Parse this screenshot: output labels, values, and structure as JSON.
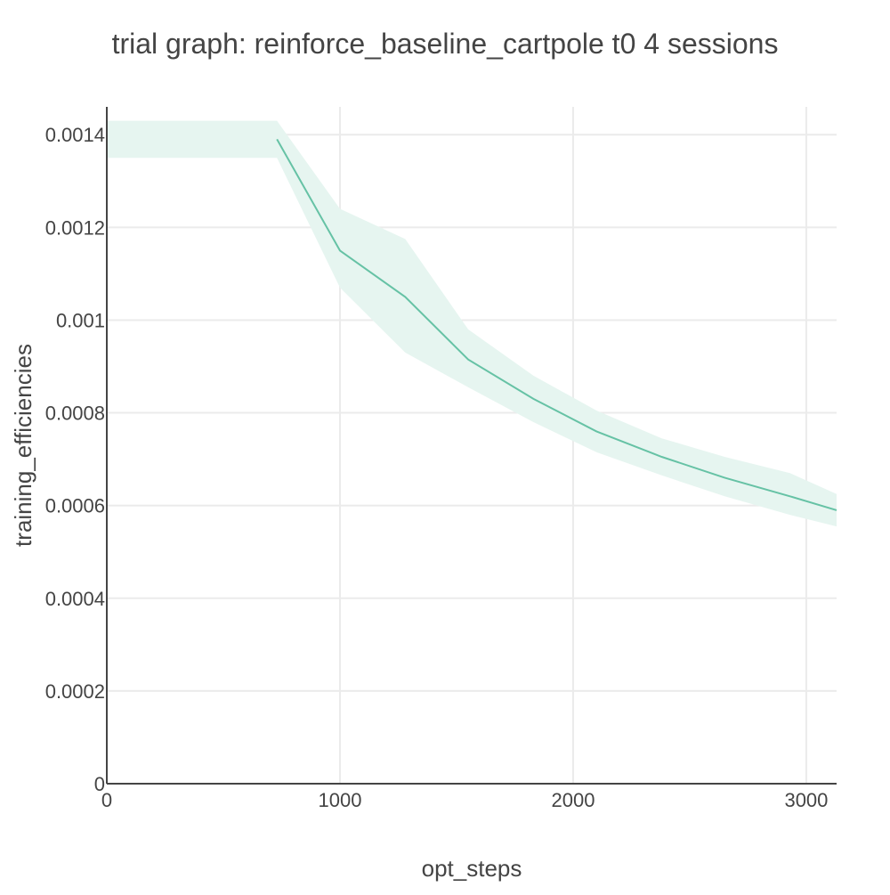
{
  "chart_data": {
    "type": "line",
    "title": "trial graph: reinforce_baseline_cartpole t0 4 sessions",
    "xlabel": "opt_steps",
    "ylabel": "training_efficiencies",
    "xlim": [
      0,
      3130
    ],
    "ylim": [
      0,
      0.00146
    ],
    "x_ticks": [
      0,
      1000,
      2000,
      3000
    ],
    "x_tick_labels": [
      "0",
      "1000",
      "2000",
      "3000"
    ],
    "y_ticks": [
      0,
      0.0002,
      0.0004,
      0.0006,
      0.0008,
      0.001,
      0.0012,
      0.0014
    ],
    "y_tick_labels": [
      "0",
      "0.0002",
      "0.0004",
      "0.0006",
      "0.0008",
      "0.001",
      "0.0012",
      "0.0014"
    ],
    "grid": true,
    "series_color": "#66c2a5",
    "band_color": "#e6f5f0",
    "series": [
      {
        "x": [
          730,
          1000,
          1280,
          1550,
          1830,
          2100,
          2380,
          2650,
          2930,
          3130
        ],
        "values": [
          0.00139,
          0.00115,
          0.00105,
          0.000915,
          0.00083,
          0.00076,
          0.000705,
          0.00066,
          0.00062,
          0.00059
        ],
        "upper": [
          0.00143,
          0.00124,
          0.001175,
          0.00098,
          0.00088,
          0.000805,
          0.000745,
          0.000705,
          0.00067,
          0.000625
        ],
        "lower": [
          0.00135,
          0.00107,
          0.00093,
          0.000855,
          0.00078,
          0.000715,
          0.000665,
          0.00062,
          0.00058,
          0.000555
        ]
      }
    ],
    "band_prefix": {
      "x": [
        0,
        730
      ],
      "upper": [
        0.00143,
        0.00143
      ],
      "lower": [
        0.00135,
        0.00135
      ]
    }
  }
}
